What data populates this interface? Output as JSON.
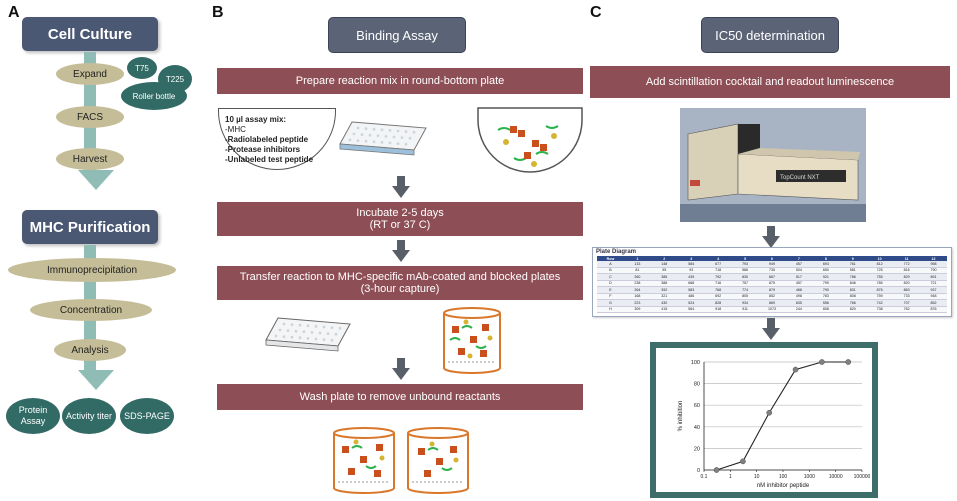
{
  "panels": {
    "a": "A",
    "b": "B",
    "c": "C"
  },
  "panel_a": {
    "cell_culture_title": "Cell Culture",
    "expand": "Expand",
    "t75": "T75",
    "t225": "T225",
    "roller_bottle": "Roller bottle",
    "facs": "FACS",
    "harvest": "Harvest",
    "mhc_purification_title": "MHC Purification",
    "immunoprecipitation": "Immunoprecipitation",
    "concentration": "Concentration",
    "analysis": "Analysis",
    "protein_assay": "Protein Assay",
    "activity_titer": "Activity titer",
    "sds_page": "SDS-PAGE"
  },
  "panel_b": {
    "title": "Binding Assay",
    "step1": "Prepare reaction mix in round-bottom plate",
    "mix_title": "10 µl assay mix:",
    "mix_items": [
      "-MHC",
      "-Radiolabeled peptide",
      "-Protease inhibitors",
      "-Unlabeled test peptide"
    ],
    "step2_line1": "Incubate 2-5 days",
    "step2_line2": "(RT or 37 C)",
    "step3_line1": "Transfer reaction to MHC-specific mAb-coated and blocked plates",
    "step3_line2": "(3-hour capture)",
    "step4": "Wash plate to remove unbound reactants"
  },
  "panel_c": {
    "title": "IC50 determination",
    "step1": "Add scintillation cocktail and readout luminescence",
    "instrument_label": "TopCount NXT",
    "plate_diagram_title": "Plate Diagram",
    "plate_header": [
      "Row",
      "1",
      "2",
      "3",
      "4",
      "5",
      "6",
      "7",
      "8",
      "9",
      "10",
      "11",
      "12"
    ],
    "plate_rows": [
      [
        "A",
        "133",
        "148",
        "584",
        "677",
        "793",
        "949",
        "457",
        "693",
        "761",
        "812",
        "772",
        "958"
      ],
      [
        "B",
        "81",
        "95",
        "93",
        "718",
        "586",
        "735",
        "504",
        "650",
        "581",
        "725",
        "816",
        "790"
      ],
      [
        "C",
        "260",
        "385",
        "439",
        "792",
        "830",
        "667",
        "517",
        "921",
        "786",
        "755",
        "829",
        "891"
      ],
      [
        "D",
        "238",
        "388",
        "668",
        "716",
        "757",
        "875",
        "457",
        "799",
        "846",
        "785",
        "820",
        "721"
      ],
      [
        "E",
        "264",
        "392",
        "583",
        "768",
        "774",
        "879",
        "468",
        "790",
        "831",
        "876",
        "863",
        "937"
      ],
      [
        "F",
        "168",
        "321",
        "486",
        "692",
        "805",
        "852",
        "498",
        "783",
        "808",
        "759",
        "733",
        "948"
      ],
      [
        "G",
        "223",
        "430",
        "524",
        "828",
        "934",
        "869",
        "835",
        "556",
        "766",
        "742",
        "707",
        "852"
      ],
      [
        "H",
        "309",
        "415",
        "564",
        "918",
        "911",
        "1073",
        "244",
        "808",
        "820",
        "738",
        "762",
        "876"
      ]
    ]
  },
  "chart_data": {
    "type": "line",
    "x": [
      0.3,
      3,
      30,
      300,
      3000,
      30000
    ],
    "y": [
      0,
      8,
      53,
      93,
      100,
      100
    ],
    "xscale": "log",
    "xlim": [
      0.1,
      100000
    ],
    "ylim": [
      0,
      100
    ],
    "xticks": [
      "0.1",
      "1",
      "10",
      "100",
      "1000",
      "10000",
      "100000"
    ],
    "yticks": [
      "0",
      "20",
      "40",
      "60",
      "80",
      "100"
    ],
    "xlabel": "nM inhibitor peptide",
    "ylabel": "% inhibition",
    "grid": "horizontal",
    "colors": {
      "line": "#222222",
      "marker": "#808080",
      "frame": "#3d6e6a"
    }
  }
}
